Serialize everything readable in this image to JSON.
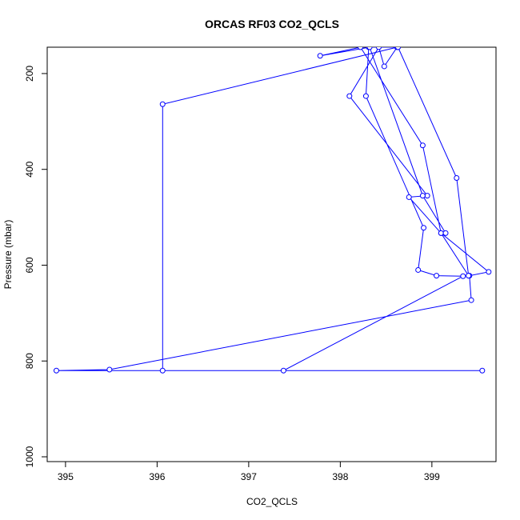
{
  "chart_data": {
    "type": "line",
    "title": "ORCAS RF03 CO2_QCLS",
    "xlabel": "CO2_QCLS",
    "ylabel": "Pressure (mbar)",
    "xlim": [
      394.8,
      399.7
    ],
    "ylim": [
      1010,
      145
    ],
    "y_reversed": true,
    "x_ticks": [
      395,
      396,
      397,
      398,
      399
    ],
    "y_ticks": [
      200,
      400,
      600,
      800,
      1000
    ],
    "markers": "open-circle",
    "color": "#0000ff",
    "grid": false,
    "legend": "none",
    "x": [
      399.55,
      394.9,
      395.48,
      399.43,
      399.41,
      399.62,
      399.1,
      398.75,
      398.95,
      398.1,
      398.42,
      398.48,
      398.62,
      396.06,
      396.06,
      397.38,
      399.34,
      399.05,
      398.85,
      398.91,
      398.28,
      398.31,
      398.63,
      399.27,
      399.4,
      399.1,
      398.9,
      398.22,
      397.78,
      398.32,
      398.9,
      399.15
    ],
    "y": [
      820,
      820,
      818,
      673,
      622,
      614,
      533,
      458,
      455,
      247,
      145,
      185,
      145,
      264,
      820,
      820,
      623,
      622,
      610,
      522,
      247,
      145,
      145,
      418,
      622,
      533,
      350,
      145,
      163,
      145,
      455,
      533
    ]
  }
}
